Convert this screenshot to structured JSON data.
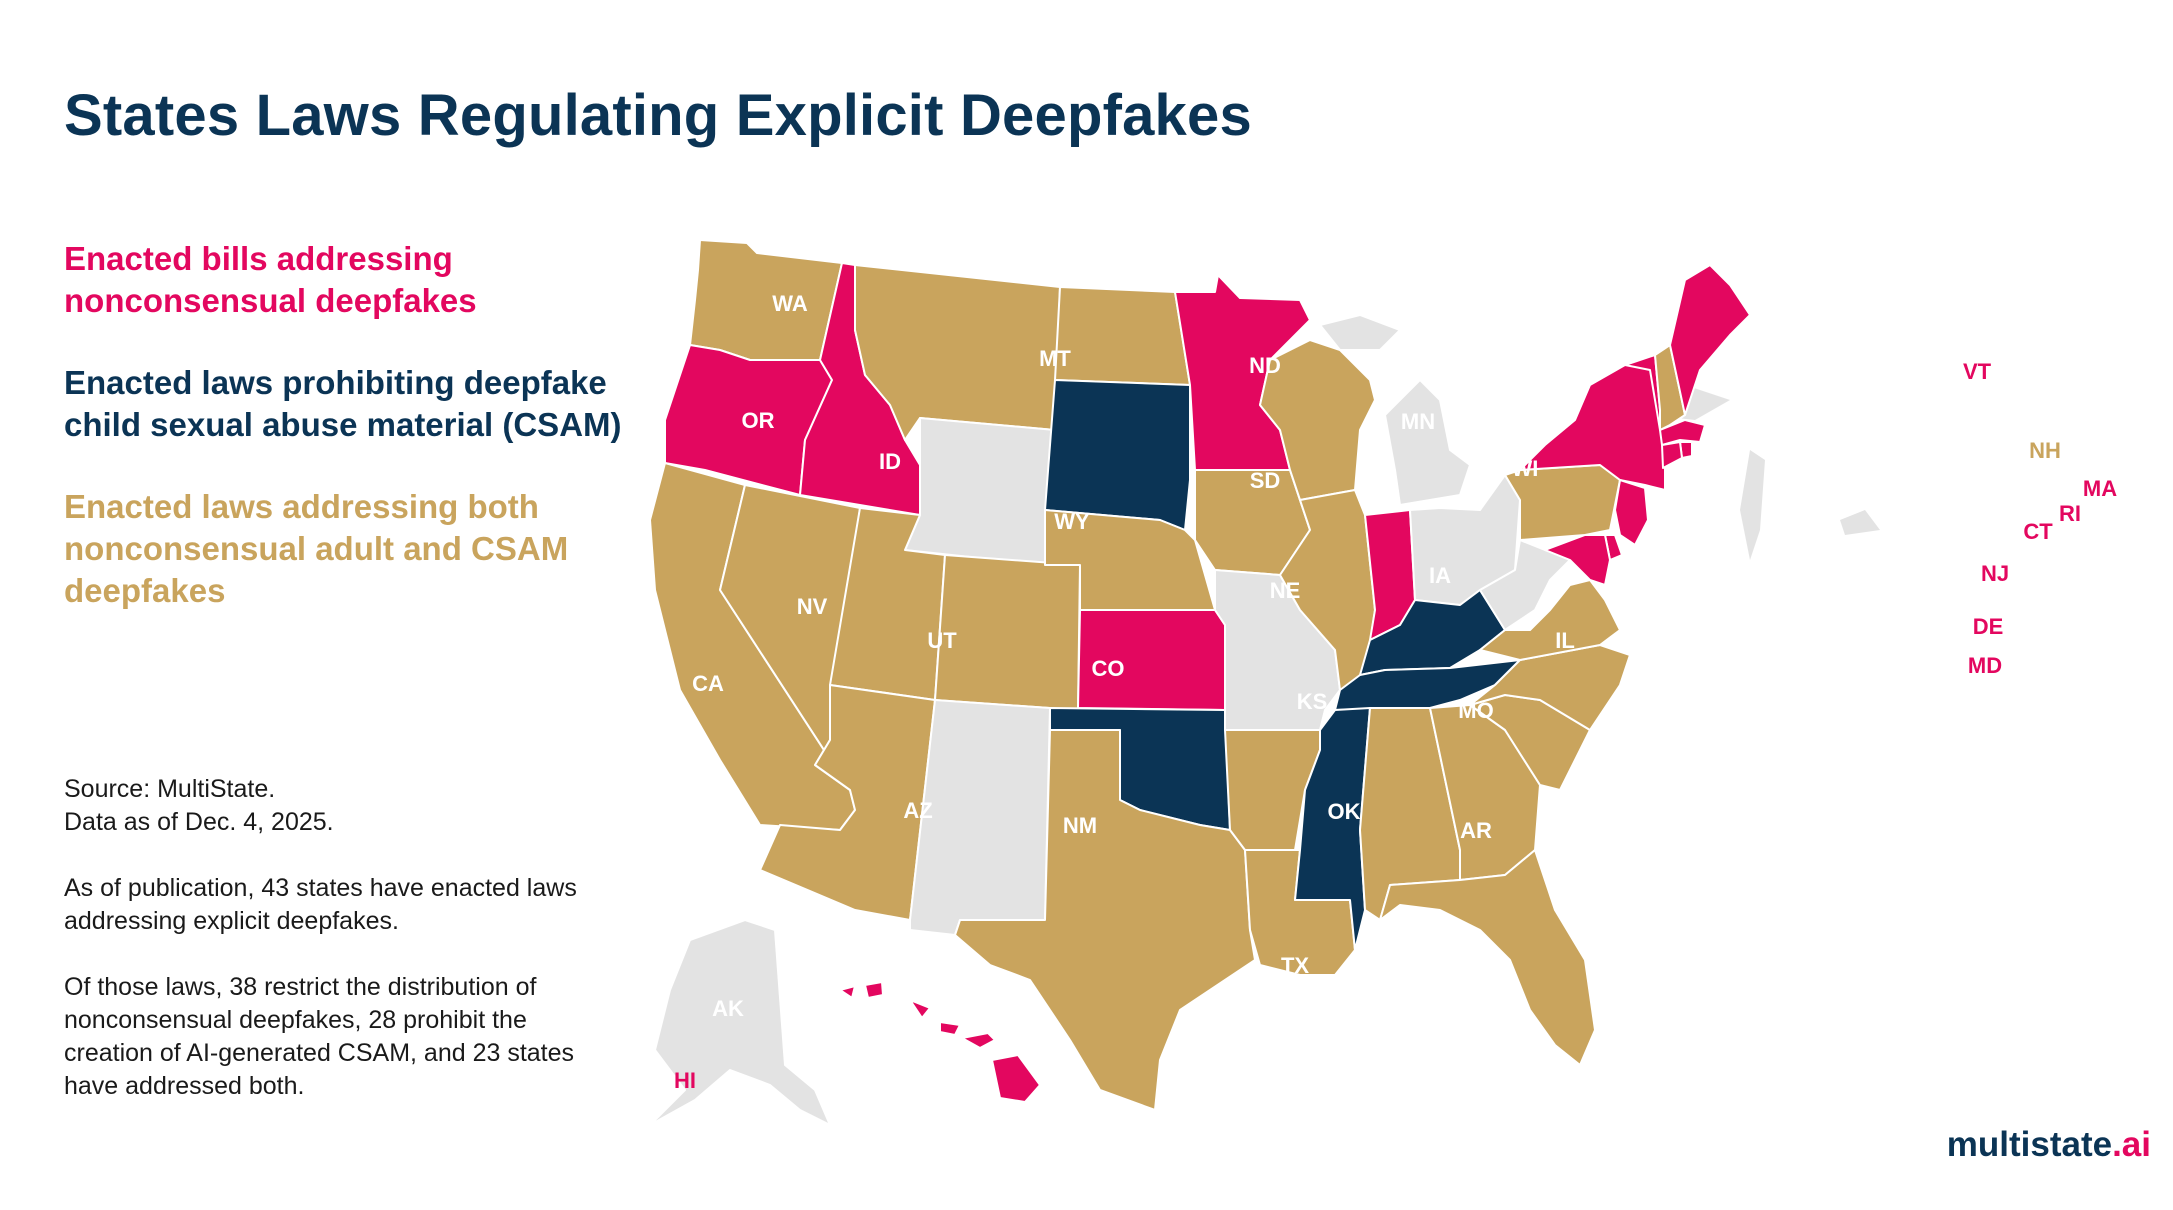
{
  "title": "States Laws Regulating Explicit Deepfakes",
  "legend": [
    {
      "key": "nonconsensual",
      "label": "Enacted bills addressing nonconsensual deepfakes",
      "color": "#e3075f"
    },
    {
      "key": "csam",
      "label": "Enacted laws prohibiting deepfake child sexual abuse material (CSAM)",
      "color": "#0b3455"
    },
    {
      "key": "both",
      "label": "Enacted laws addressing both nonconsensual adult and CSAM deepfakes",
      "color": "#c9a45d"
    }
  ],
  "colors": {
    "none": "#e3e3e3",
    "label_light": "#ffffff"
  },
  "notes": {
    "source": "Source: MultiState.",
    "date": "Data as of Dec. 4, 2025.",
    "para1": "As of publication, 43 states have enacted laws addressing explicit deepfakes.",
    "para2": "Of those laws, 38 restrict the distribution of nonconsensual deepfakes, 28 prohibit the creation of AI-generated CSAM, and 23 states have addressed both."
  },
  "brand": {
    "name": "multistate",
    "tld": ".ai"
  },
  "states": [
    {
      "abbr": "WA",
      "category": "both"
    },
    {
      "abbr": "OR",
      "category": "nonconsensual"
    },
    {
      "abbr": "CA",
      "category": "both"
    },
    {
      "abbr": "ID",
      "category": "nonconsensual"
    },
    {
      "abbr": "NV",
      "category": "both"
    },
    {
      "abbr": "MT",
      "category": "both"
    },
    {
      "abbr": "WY",
      "category": "none"
    },
    {
      "abbr": "UT",
      "category": "both"
    },
    {
      "abbr": "AZ",
      "category": "both"
    },
    {
      "abbr": "CO",
      "category": "both"
    },
    {
      "abbr": "NM",
      "category": "none"
    },
    {
      "abbr": "ND",
      "category": "both"
    },
    {
      "abbr": "SD",
      "category": "csam"
    },
    {
      "abbr": "NE",
      "category": "both"
    },
    {
      "abbr": "KS",
      "category": "nonconsensual"
    },
    {
      "abbr": "OK",
      "category": "csam"
    },
    {
      "abbr": "TX",
      "category": "both"
    },
    {
      "abbr": "MN",
      "category": "nonconsensual"
    },
    {
      "abbr": "IA",
      "category": "both"
    },
    {
      "abbr": "MO",
      "category": "none"
    },
    {
      "abbr": "AR",
      "category": "both"
    },
    {
      "abbr": "LA",
      "category": "both"
    },
    {
      "abbr": "WI",
      "category": "both"
    },
    {
      "abbr": "IL",
      "category": "both"
    },
    {
      "abbr": "MI",
      "category": "none"
    },
    {
      "abbr": "IN",
      "category": "nonconsensual"
    },
    {
      "abbr": "OH",
      "category": "none"
    },
    {
      "abbr": "KY",
      "category": "csam"
    },
    {
      "abbr": "TN",
      "category": "csam"
    },
    {
      "abbr": "MS",
      "category": "csam"
    },
    {
      "abbr": "AL",
      "category": "both"
    },
    {
      "abbr": "GA",
      "category": "both"
    },
    {
      "abbr": "FL",
      "category": "both"
    },
    {
      "abbr": "SC",
      "category": "both"
    },
    {
      "abbr": "NC",
      "category": "both"
    },
    {
      "abbr": "VA",
      "category": "both"
    },
    {
      "abbr": "WV",
      "category": "none"
    },
    {
      "abbr": "PA",
      "category": "both"
    },
    {
      "abbr": "NY",
      "category": "nonconsensual"
    },
    {
      "abbr": "VT",
      "category": "nonconsensual"
    },
    {
      "abbr": "NH",
      "category": "both"
    },
    {
      "abbr": "ME",
      "category": "nonconsensual"
    },
    {
      "abbr": "MA",
      "category": "nonconsensual"
    },
    {
      "abbr": "RI",
      "category": "nonconsensual"
    },
    {
      "abbr": "CT",
      "category": "nonconsensual"
    },
    {
      "abbr": "NJ",
      "category": "nonconsensual"
    },
    {
      "abbr": "DE",
      "category": "nonconsensual"
    },
    {
      "abbr": "MD",
      "category": "nonconsensual"
    },
    {
      "abbr": "AK",
      "category": "none"
    },
    {
      "abbr": "HI",
      "category": "nonconsensual"
    }
  ]
}
